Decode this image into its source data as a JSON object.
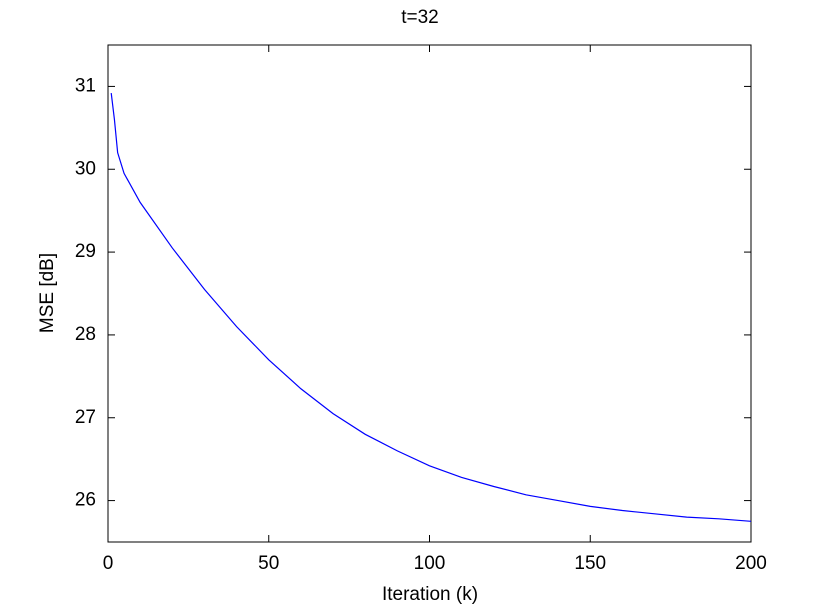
{
  "chart_data": {
    "type": "line",
    "title": "t=32",
    "x_label": "Iteration (k)",
    "y_label": "MSE [dB]",
    "x": [
      1,
      2,
      3,
      5,
      10,
      20,
      30,
      40,
      50,
      60,
      70,
      80,
      90,
      100,
      110,
      120,
      130,
      140,
      150,
      160,
      170,
      180,
      190,
      200
    ],
    "series": [
      {
        "name": "MSE",
        "color": "#0000ff",
        "values": [
          30.92,
          30.6,
          30.2,
          29.95,
          29.6,
          29.05,
          28.55,
          28.1,
          27.7,
          27.35,
          27.05,
          26.8,
          26.6,
          26.42,
          26.28,
          26.17,
          26.07,
          26.0,
          25.93,
          25.88,
          25.84,
          25.8,
          25.78,
          25.75
        ]
      }
    ],
    "xlim": [
      0,
      200
    ],
    "xticks": [
      0,
      50,
      100,
      150,
      200
    ],
    "ylim": [
      25.5,
      31.5
    ],
    "yticks": [
      26,
      27,
      28,
      29,
      30,
      31
    ]
  }
}
